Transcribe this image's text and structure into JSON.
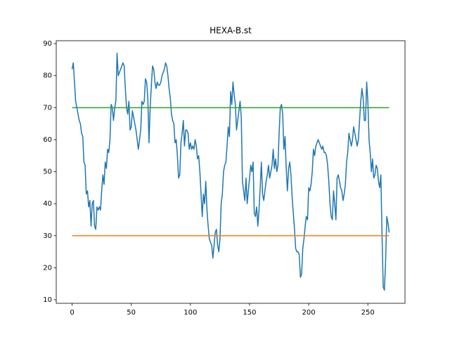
{
  "chart_data": {
    "type": "line",
    "title": "HEXA-B.st",
    "series": [
      {
        "color": "#1f77b4",
        "values": [
          82,
          84,
          78,
          72,
          70,
          68,
          66,
          65,
          62,
          61,
          53,
          52,
          43,
          44,
          39,
          41,
          33,
          40,
          41,
          33,
          32,
          39,
          38,
          39,
          38,
          44,
          49,
          46,
          53,
          51,
          57,
          56,
          60,
          71,
          70,
          66,
          70,
          72,
          87,
          80,
          81,
          82,
          83,
          84,
          83,
          76,
          70,
          68,
          72,
          63,
          64,
          69,
          67,
          65,
          63,
          60,
          57,
          60,
          63,
          72,
          71,
          72,
          79,
          78,
          73,
          59,
          70,
          77,
          83,
          82,
          78,
          76,
          78,
          77,
          77,
          78,
          80,
          81,
          82,
          84,
          83,
          80,
          76,
          73,
          68,
          66,
          65,
          59,
          60,
          55,
          48,
          49,
          59,
          62,
          66,
          58,
          63,
          63,
          62,
          57,
          59,
          57,
          58,
          57,
          60,
          58,
          54,
          55,
          50,
          43,
          36,
          43,
          40,
          47,
          38,
          33,
          29,
          28,
          27,
          23,
          27,
          31,
          32,
          27,
          25,
          29,
          40,
          43,
          50,
          52,
          53,
          58,
          64,
          61,
          75,
          71,
          78,
          74,
          71,
          63,
          66,
          69,
          72,
          67,
          47,
          44,
          41,
          48,
          40,
          44,
          48,
          52,
          50,
          53,
          37,
          36,
          39,
          33,
          38,
          45,
          53,
          43,
          41,
          44,
          47,
          49,
          52,
          48,
          50,
          52,
          57,
          51,
          54,
          50,
          52,
          62,
          70,
          71,
          68,
          57,
          61,
          51,
          44,
          51,
          53,
          49,
          42,
          37,
          32,
          26,
          25,
          25,
          24,
          17,
          18,
          26,
          29,
          33,
          36,
          35,
          45,
          44,
          46,
          50,
          57,
          55,
          58,
          59,
          60,
          59,
          58,
          57,
          58,
          56,
          56,
          55,
          52,
          47,
          40,
          36,
          35,
          44,
          40,
          35,
          48,
          49,
          47,
          45,
          44,
          41,
          43,
          46,
          53,
          56,
          62,
          60,
          58,
          60,
          64,
          62,
          60,
          58,
          60,
          66,
          72,
          76,
          73,
          66,
          66,
          78,
          72,
          60,
          56,
          50,
          54,
          48,
          49,
          52,
          51,
          47,
          45,
          49,
          30,
          14,
          13,
          22,
          36,
          34,
          31
        ]
      },
      {
        "color": "#ff7f0e",
        "x": [
          0,
          268
        ],
        "values": [
          30,
          30
        ]
      },
      {
        "color": "#2ca02c",
        "x": [
          0,
          268
        ],
        "values": [
          70,
          70
        ]
      }
    ],
    "xlim": [
      -13.4,
      281.4
    ],
    "xticks": [
      0,
      50,
      100,
      150,
      200,
      250
    ],
    "ylim": [
      8.9,
      90.9
    ],
    "yticks": [
      10,
      20,
      30,
      40,
      50,
      60,
      70,
      80,
      90
    ]
  }
}
